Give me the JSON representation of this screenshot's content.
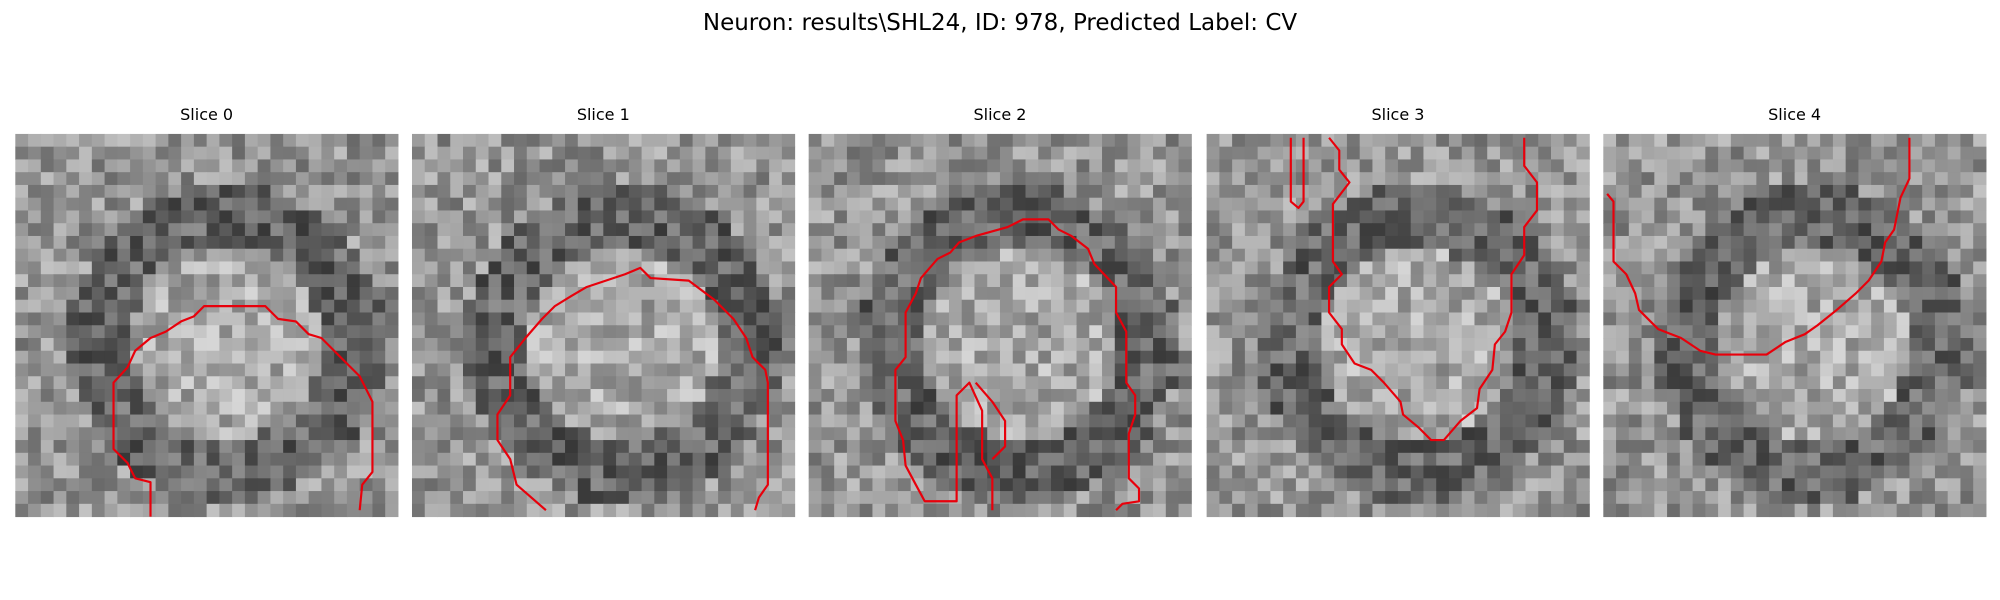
{
  "title": "Neuron: results\\SHL24, ID: 978, Predicted Label: CV",
  "panels": [
    {
      "title": "Slice 0"
    },
    {
      "title": "Slice 1"
    },
    {
      "title": "Slice 2"
    },
    {
      "title": "Slice 3"
    },
    {
      "title": "Slice 4"
    }
  ]
}
